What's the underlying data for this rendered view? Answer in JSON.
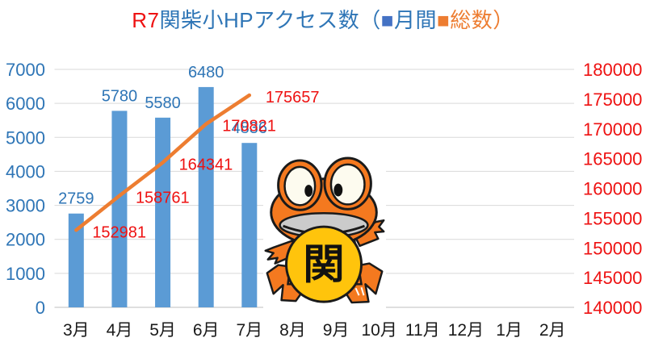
{
  "title": {
    "full_text": "R7関柴小HPアクセス数（■月間■総数）",
    "parts": [
      {
        "text": "R7",
        "color": "#ee1111"
      },
      {
        "text": "関柴小HPアクセス数（",
        "color": "#2E75B6"
      },
      {
        "text": "■",
        "color": "#4472C4"
      },
      {
        "text": "月間",
        "color": "#2E75B6"
      },
      {
        "text": "■",
        "color": "#ED7D31"
      },
      {
        "text": "総数）",
        "color": "#ED7D31"
      }
    ]
  },
  "mascot": {
    "description": "orange frog mascot holding a gold coin",
    "badge_text": "関",
    "body_color": "#F4791F",
    "badge_color": "#FFC40C"
  },
  "chart_data": {
    "type": "bar",
    "subtype": "bar+line combo, dual axis",
    "categories": [
      "3月",
      "4月",
      "5月",
      "6月",
      "7月",
      "8月",
      "9月",
      "10月",
      "11月",
      "12月",
      "1月",
      "2月"
    ],
    "category_color": "#1a1a1a",
    "series": [
      {
        "name": "月間",
        "type": "bar",
        "axis": "left",
        "color": "#5B9BD5",
        "label_color": "#2E75B6",
        "values": [
          2759,
          5780,
          5580,
          6480,
          4836,
          null,
          null,
          null,
          null,
          null,
          null,
          null
        ]
      },
      {
        "name": "総数",
        "type": "line",
        "axis": "right",
        "color": "#ED7D31",
        "label_color": "#EE1111",
        "values": [
          152981,
          158761,
          164341,
          170821,
          175657,
          null,
          null,
          null,
          null,
          null,
          null,
          null
        ]
      }
    ],
    "left_axis": {
      "min": 0,
      "max": 7000,
      "step": 1000,
      "tick_color": "#2E75B6"
    },
    "right_axis": {
      "min": 140000,
      "max": 180000,
      "step": 5000,
      "tick_color": "#EE1111"
    },
    "grid": true,
    "gridline_color": "#D9D9D9",
    "axisline_color": "#BFBFBF",
    "legend_position": "inside title"
  }
}
